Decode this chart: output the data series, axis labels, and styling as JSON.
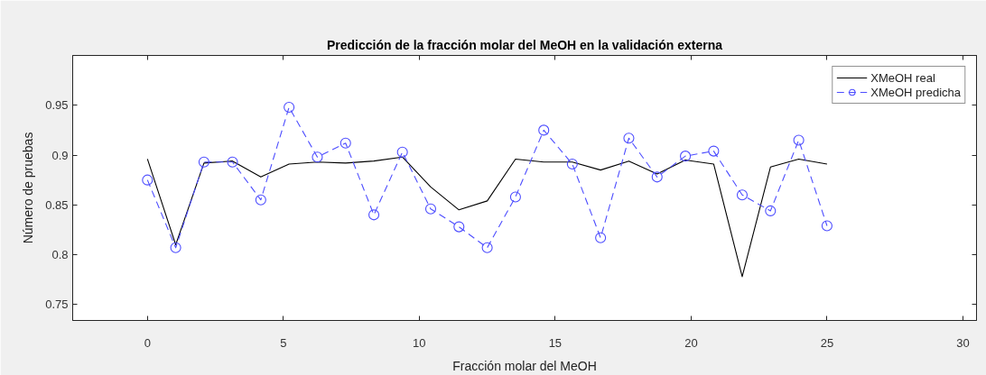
{
  "chart_data": {
    "type": "line",
    "title": "Predicción de la fracción molar del MeOH en la validación externa",
    "xlabel": "Fracción molar del MeOH",
    "ylabel": "Número de pruebas",
    "x": [
      0,
      1.04,
      2.08,
      3.13,
      4.17,
      5.21,
      6.25,
      7.29,
      8.33,
      9.38,
      10.42,
      11.46,
      12.5,
      13.54,
      14.58,
      15.63,
      16.67,
      17.71,
      18.75,
      19.79,
      20.83,
      21.88,
      22.92,
      23.96,
      25
    ],
    "series": [
      {
        "name": "XMeOH real",
        "color": "#000000",
        "marker": "none",
        "line_style": "solid",
        "values": [
          0.896,
          0.81,
          0.892,
          0.894,
          0.878,
          0.891,
          0.893,
          0.892,
          0.894,
          0.898,
          0.868,
          0.845,
          0.854,
          0.896,
          0.893,
          0.893,
          0.885,
          0.894,
          0.881,
          0.895,
          0.891,
          0.778,
          0.888,
          0.896,
          0.891
        ]
      },
      {
        "name": "XMeOH predicha",
        "color": "#4d4dff",
        "marker": "circle",
        "line_style": "dashed",
        "values": [
          0.875,
          0.807,
          0.893,
          0.893,
          0.855,
          0.948,
          0.898,
          0.912,
          0.84,
          0.903,
          0.846,
          0.828,
          0.807,
          0.858,
          0.925,
          0.891,
          0.817,
          0.917,
          0.878,
          0.899,
          0.904,
          0.86,
          0.844,
          0.915,
          0.829
        ]
      }
    ],
    "xlim": [
      -2.75,
      30.5
    ],
    "ylim": [
      0.734,
      1.0
    ],
    "xticks": [
      0,
      5,
      10,
      15,
      20,
      25,
      30
    ],
    "yticks": [
      0.75,
      0.8,
      0.85,
      0.9,
      0.95
    ],
    "legend": "top right"
  }
}
